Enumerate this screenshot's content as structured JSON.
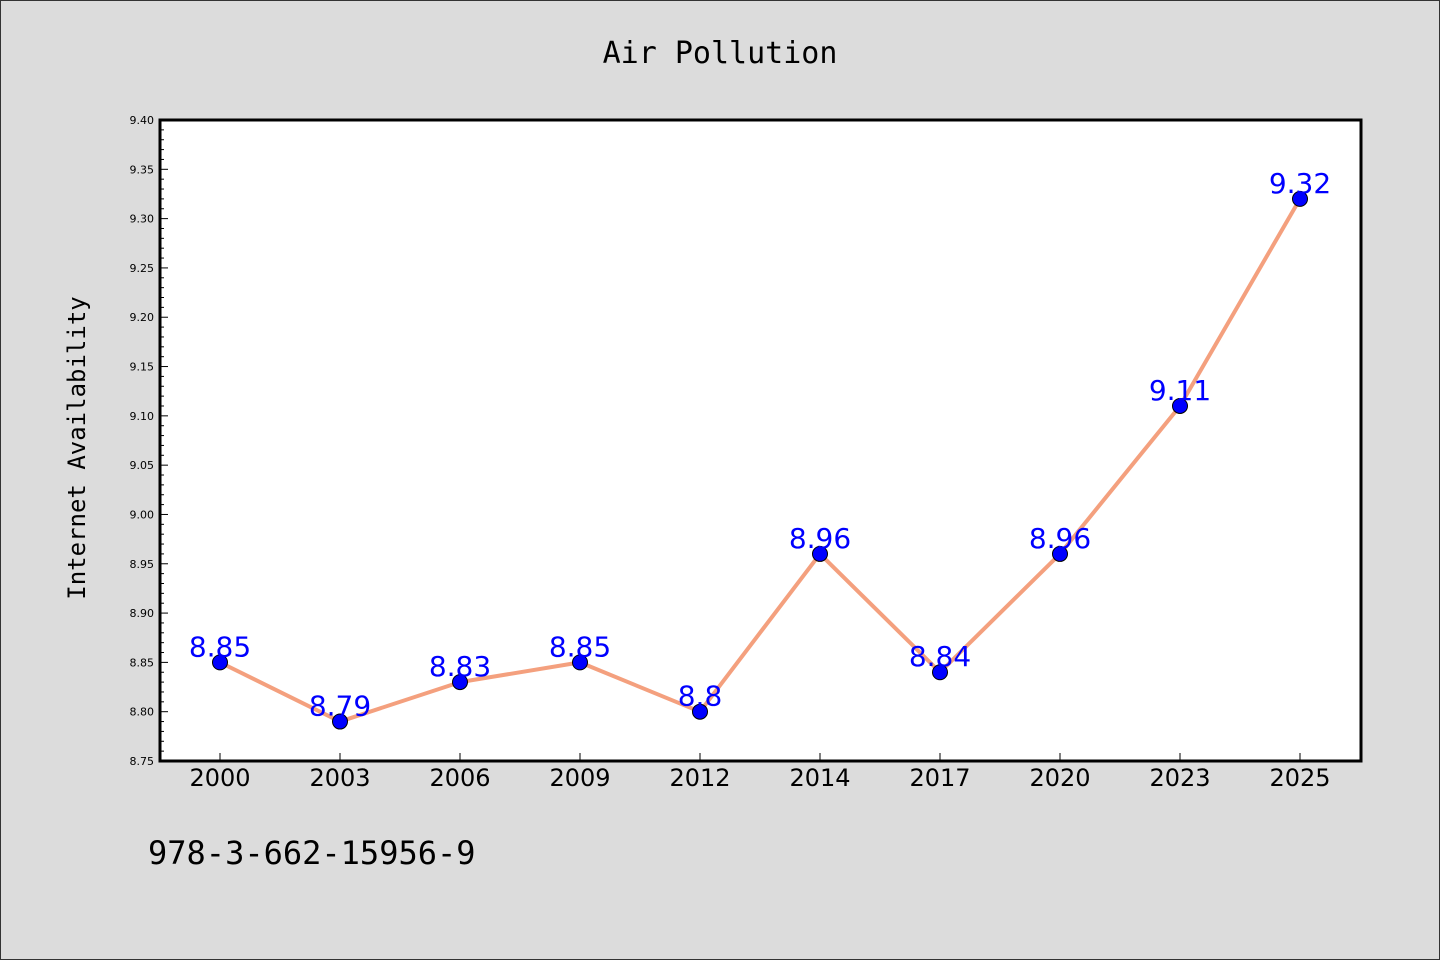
{
  "chart_data": {
    "type": "line",
    "title": "Air Pollution",
    "xlabel": "",
    "ylabel": "Internet Availability",
    "categories": [
      "2000",
      "2003",
      "2006",
      "2009",
      "2012",
      "2014",
      "2017",
      "2020",
      "2023",
      "2025"
    ],
    "series": [
      {
        "values": [
          8.85,
          8.79,
          8.83,
          8.85,
          8.8,
          8.96,
          8.84,
          8.96,
          9.11,
          9.32
        ],
        "labels": [
          "8.85",
          "8.79",
          "8.83",
          "8.85",
          "8.8",
          "8.96",
          "8.84",
          "8.96",
          "9.11",
          "9.32"
        ]
      }
    ],
    "ylim": [
      8.75,
      9.4
    ],
    "yticks": [
      "8.75",
      "8.80",
      "8.85",
      "8.90",
      "8.95",
      "9.00",
      "9.05",
      "9.10",
      "9.15",
      "9.20",
      "9.25",
      "9.30",
      "9.35",
      "9.40"
    ],
    "grid": false,
    "legend": "none",
    "colors": {
      "line": "#f4a07e",
      "marker": "#0000ff",
      "label": "#0000ff",
      "background": "#dcdcdc",
      "plot_background": "#ffffff"
    }
  },
  "footer": {
    "isbn": "978-3-662-15956-9"
  }
}
